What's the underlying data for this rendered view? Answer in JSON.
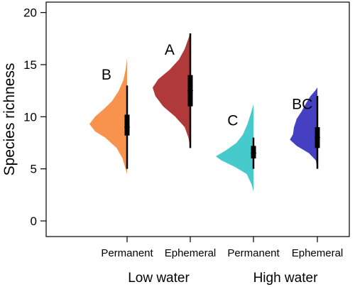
{
  "chart_data": {
    "type": "violin",
    "ylabel": "Species richness",
    "ylim": [
      -1.5,
      21
    ],
    "yticks": [
      0,
      5,
      10,
      15,
      20
    ],
    "categories": [
      "Permanent",
      "Ephemeral",
      "Permanent",
      "Ephemeral"
    ],
    "groups": [
      {
        "label": "Low water",
        "members": [
          0,
          1
        ]
      },
      {
        "label": "High water",
        "members": [
          2,
          3
        ]
      }
    ],
    "series": [
      {
        "category": "Permanent",
        "group": "Low water",
        "color": "#F7934C",
        "significance": "B",
        "min": 5,
        "q1": 8.2,
        "median": 9,
        "q3": 10.2,
        "max": 13,
        "density": [
          [
            4.5,
            0.0
          ],
          [
            5,
            0.04
          ],
          [
            6,
            0.12
          ],
          [
            7,
            0.28
          ],
          [
            8,
            0.58
          ],
          [
            8.6,
            0.85
          ],
          [
            9.3,
            1.0
          ],
          [
            10,
            0.85
          ],
          [
            10.8,
            0.6
          ],
          [
            11.5,
            0.4
          ],
          [
            12.5,
            0.22
          ],
          [
            13.5,
            0.1
          ],
          [
            14.5,
            0.04
          ],
          [
            15.6,
            0.0
          ]
        ]
      },
      {
        "category": "Ephemeral",
        "group": "Low water",
        "color": "#B03A3A",
        "significance": "A",
        "min": 7,
        "q1": 11,
        "median": 12.5,
        "q3": 14,
        "max": 18,
        "density": [
          [
            7,
            0.0
          ],
          [
            8,
            0.05
          ],
          [
            9,
            0.15
          ],
          [
            10,
            0.4
          ],
          [
            11,
            0.72
          ],
          [
            12,
            0.93
          ],
          [
            12.8,
            1.0
          ],
          [
            13.6,
            0.85
          ],
          [
            14.5,
            0.55
          ],
          [
            15.5,
            0.3
          ],
          [
            16.5,
            0.15
          ],
          [
            17.5,
            0.05
          ],
          [
            18,
            0.0
          ]
        ]
      },
      {
        "category": "Permanent",
        "group": "High water",
        "color": "#47CACB",
        "significance": "C",
        "min": 5,
        "q1": 6,
        "median": 6.5,
        "q3": 7.2,
        "max": 8,
        "density": [
          [
            2.8,
            0.0
          ],
          [
            3.5,
            0.05
          ],
          [
            4.5,
            0.18
          ],
          [
            5.2,
            0.5
          ],
          [
            5.8,
            0.85
          ],
          [
            6.2,
            1.0
          ],
          [
            6.8,
            0.72
          ],
          [
            7.5,
            0.45
          ],
          [
            8.3,
            0.28
          ],
          [
            9.3,
            0.16
          ],
          [
            10.3,
            0.07
          ],
          [
            11.2,
            0.0
          ]
        ]
      },
      {
        "category": "Ephemeral",
        "group": "High water",
        "color": "#4540C2",
        "significance": "BC",
        "min": 5,
        "q1": 7,
        "median": 8,
        "q3": 9,
        "max": 12,
        "density": [
          [
            5,
            0.0
          ],
          [
            5.8,
            0.04
          ],
          [
            6.5,
            0.22
          ],
          [
            7.2,
            0.55
          ],
          [
            7.8,
            0.73
          ],
          [
            8.3,
            0.65
          ],
          [
            9,
            0.62
          ],
          [
            9.8,
            0.55
          ],
          [
            10.5,
            0.42
          ],
          [
            11.3,
            0.3
          ],
          [
            12,
            0.18
          ],
          [
            12.5,
            0.06
          ],
          [
            12.8,
            0.0
          ]
        ]
      }
    ]
  }
}
